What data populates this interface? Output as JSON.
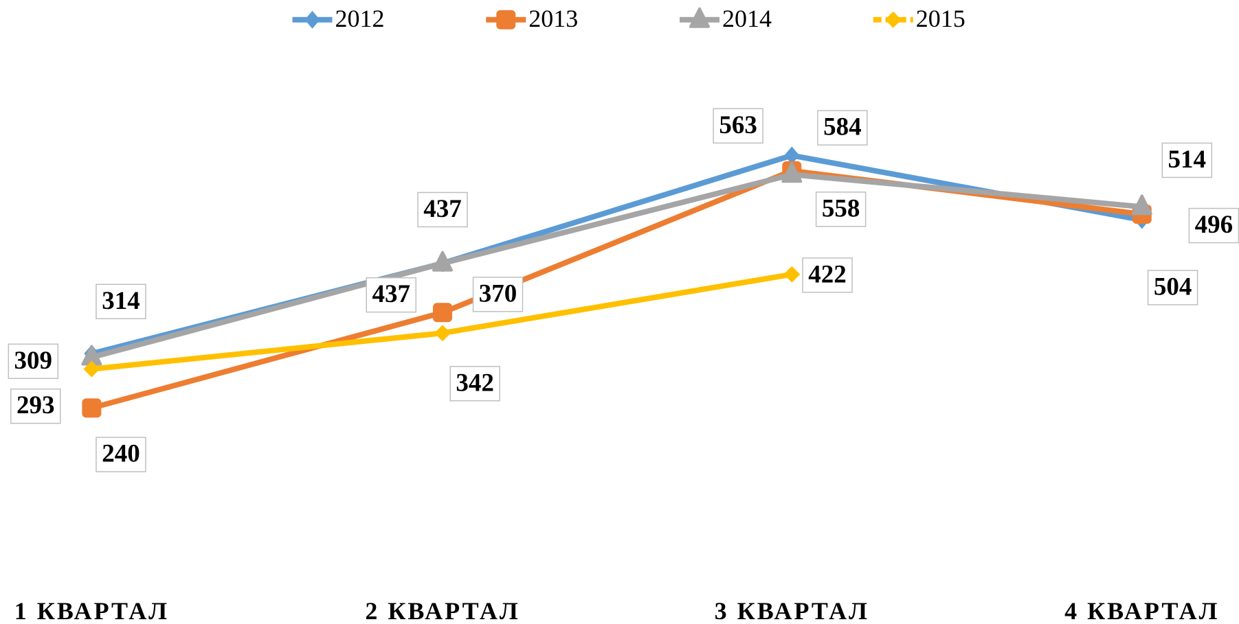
{
  "chart_data": {
    "type": "line",
    "categories": [
      "1 КВАРТАЛ",
      "2 КВАРТАЛ",
      "3 КВАРТАЛ",
      "4 КВАРТАЛ"
    ],
    "series": [
      {
        "name": "2012",
        "color": "#5b9bd5",
        "values": [
          314,
          437,
          584,
          496
        ]
      },
      {
        "name": "2013",
        "color": "#ed7d31",
        "values": [
          240,
          370,
          563,
          504
        ]
      },
      {
        "name": "2014",
        "color": "#a5a5a5",
        "values": [
          309,
          437,
          558,
          514
        ]
      },
      {
        "name": "2015",
        "color": "#ffc000",
        "values": [
          293,
          342,
          422,
          null
        ]
      }
    ],
    "ylim": [
      0,
      700
    ],
    "legend": "top"
  }
}
